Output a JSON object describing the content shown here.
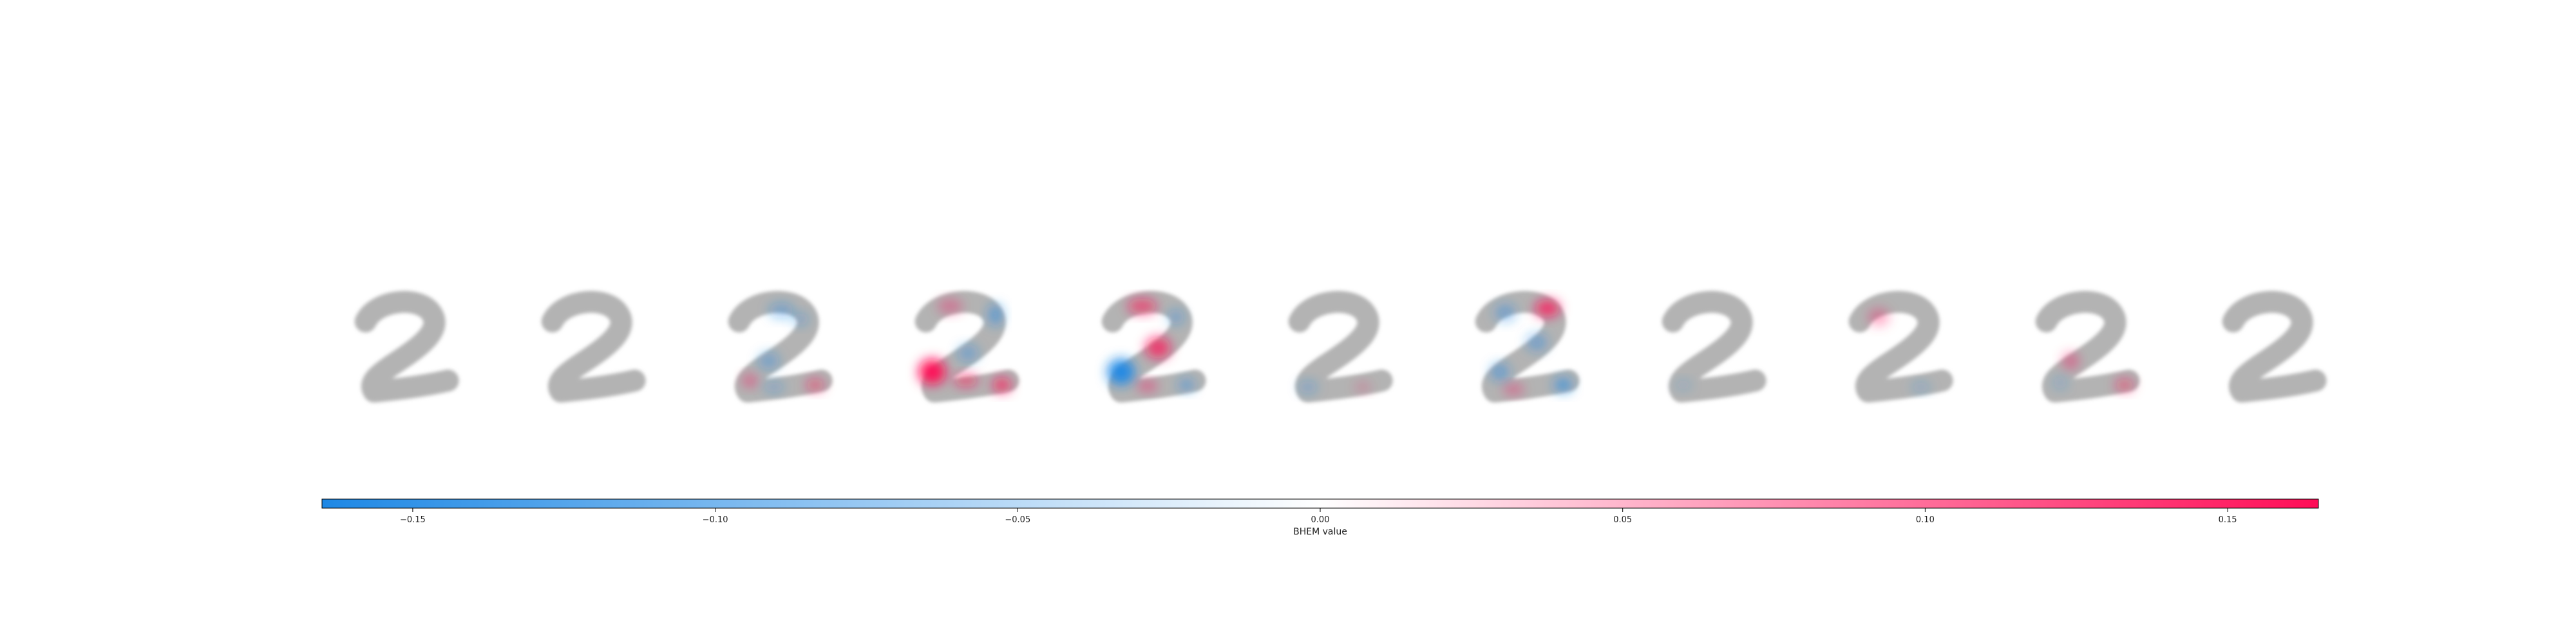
{
  "chart_data": {
    "type": "heatmap",
    "panel_count": 11,
    "digit_class": "2",
    "panels": [
      {
        "index": 0,
        "blobs": []
      },
      {
        "index": 1,
        "blobs": []
      },
      {
        "index": 2,
        "blobs": [
          {
            "u": 0.52,
            "v": 0.16,
            "value": -0.06,
            "rx": 0.12,
            "ry": 0.07
          },
          {
            "u": 0.7,
            "v": 0.24,
            "value": -0.05,
            "rx": 0.08,
            "ry": 0.06
          },
          {
            "u": 0.4,
            "v": 0.62,
            "value": -0.06,
            "rx": 0.1,
            "ry": 0.08
          },
          {
            "u": 0.22,
            "v": 0.8,
            "value": 0.07,
            "rx": 0.07,
            "ry": 0.06
          },
          {
            "u": 0.45,
            "v": 0.86,
            "value": -0.05,
            "rx": 0.1,
            "ry": 0.05
          },
          {
            "u": 0.84,
            "v": 0.84,
            "value": 0.08,
            "rx": 0.09,
            "ry": 0.06
          }
        ]
      },
      {
        "index": 3,
        "blobs": [
          {
            "u": 0.35,
            "v": 0.12,
            "value": 0.05,
            "rx": 0.12,
            "ry": 0.07
          },
          {
            "u": 0.78,
            "v": 0.2,
            "value": -0.09,
            "rx": 0.07,
            "ry": 0.1
          },
          {
            "u": 0.52,
            "v": 0.55,
            "value": -0.06,
            "rx": 0.1,
            "ry": 0.08
          },
          {
            "u": 0.18,
            "v": 0.72,
            "value": 0.16,
            "rx": 0.13,
            "ry": 0.12
          },
          {
            "u": 0.5,
            "v": 0.8,
            "value": 0.09,
            "rx": 0.12,
            "ry": 0.06
          },
          {
            "u": 0.84,
            "v": 0.84,
            "value": 0.12,
            "rx": 0.09,
            "ry": 0.07
          }
        ]
      },
      {
        "index": 4,
        "blobs": [
          {
            "u": 0.4,
            "v": 0.12,
            "value": 0.1,
            "rx": 0.14,
            "ry": 0.07
          },
          {
            "u": 0.72,
            "v": 0.22,
            "value": -0.06,
            "rx": 0.08,
            "ry": 0.07
          },
          {
            "u": 0.55,
            "v": 0.5,
            "value": 0.12,
            "rx": 0.12,
            "ry": 0.1
          },
          {
            "u": 0.2,
            "v": 0.72,
            "value": -0.16,
            "rx": 0.13,
            "ry": 0.12
          },
          {
            "u": 0.45,
            "v": 0.85,
            "value": 0.07,
            "rx": 0.1,
            "ry": 0.05
          },
          {
            "u": 0.82,
            "v": 0.84,
            "value": -0.08,
            "rx": 0.08,
            "ry": 0.06
          }
        ]
      },
      {
        "index": 5,
        "blobs": [
          {
            "u": 0.2,
            "v": 0.86,
            "value": -0.05,
            "rx": 0.09,
            "ry": 0.06
          },
          {
            "u": 0.72,
            "v": 0.86,
            "value": 0.03,
            "rx": 0.08,
            "ry": 0.05
          }
        ]
      },
      {
        "index": 6,
        "blobs": [
          {
            "u": 0.3,
            "v": 0.18,
            "value": -0.07,
            "rx": 0.1,
            "ry": 0.08
          },
          {
            "u": 0.7,
            "v": 0.14,
            "value": 0.13,
            "rx": 0.12,
            "ry": 0.08
          },
          {
            "u": 0.6,
            "v": 0.45,
            "value": -0.07,
            "rx": 0.1,
            "ry": 0.08
          },
          {
            "u": 0.25,
            "v": 0.72,
            "value": -0.08,
            "rx": 0.09,
            "ry": 0.08
          },
          {
            "u": 0.38,
            "v": 0.88,
            "value": 0.06,
            "rx": 0.1,
            "ry": 0.05
          },
          {
            "u": 0.85,
            "v": 0.84,
            "value": -0.1,
            "rx": 0.09,
            "ry": 0.07
          }
        ]
      },
      {
        "index": 7,
        "blobs": [
          {
            "u": 0.22,
            "v": 0.84,
            "value": -0.03,
            "rx": 0.08,
            "ry": 0.05
          }
        ]
      },
      {
        "index": 8,
        "blobs": [
          {
            "u": 0.3,
            "v": 0.22,
            "value": 0.05,
            "rx": 0.1,
            "ry": 0.08
          },
          {
            "u": 0.7,
            "v": 0.86,
            "value": -0.04,
            "rx": 0.09,
            "ry": 0.05
          }
        ]
      },
      {
        "index": 9,
        "blobs": [
          {
            "u": 0.35,
            "v": 0.62,
            "value": 0.06,
            "rx": 0.08,
            "ry": 0.08
          },
          {
            "u": 0.25,
            "v": 0.82,
            "value": -0.04,
            "rx": 0.07,
            "ry": 0.06
          },
          {
            "u": 0.86,
            "v": 0.84,
            "value": 0.08,
            "rx": 0.09,
            "ry": 0.06
          }
        ]
      },
      {
        "index": 10,
        "blobs": []
      }
    ],
    "colorbar": {
      "label": "BHEM value",
      "range": [
        -0.165,
        0.165
      ],
      "ticks": [
        -0.15,
        -0.1,
        -0.05,
        0.0,
        0.05,
        0.1,
        0.15
      ],
      "tick_labels": [
        "−0.15",
        "−0.10",
        "−0.05",
        "0.00",
        "0.05",
        "0.10",
        "0.15"
      ],
      "colormap": {
        "negative": "#1e88e5",
        "middle": "#ffffff",
        "positive": "#ff0d57"
      }
    },
    "digit_color": "#b3b3b3"
  }
}
